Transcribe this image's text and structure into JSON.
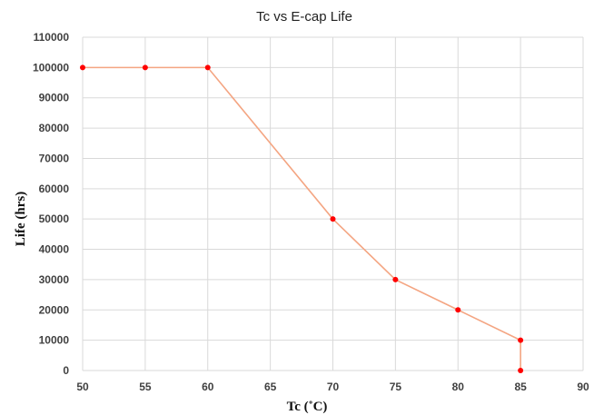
{
  "chart_data": {
    "type": "line",
    "title": "Tc vs E-cap Life",
    "xlabel": "Tc (˚C)",
    "ylabel": "Life (hrs)",
    "xlim": [
      50,
      90
    ],
    "ylim": [
      0,
      110000
    ],
    "x_ticks": [
      50,
      55,
      60,
      65,
      70,
      75,
      80,
      85,
      90
    ],
    "y_ticks": [
      0,
      10000,
      20000,
      30000,
      40000,
      50000,
      60000,
      70000,
      80000,
      90000,
      100000,
      110000
    ],
    "grid": true,
    "series": [
      {
        "x": [
          50,
          55,
          60,
          70,
          75,
          80,
          85,
          85
        ],
        "y": [
          100000,
          100000,
          100000,
          50000,
          30000,
          20000,
          10000,
          0
        ],
        "line_color": "#f4a582",
        "marker_color": "#ff0000"
      }
    ]
  }
}
